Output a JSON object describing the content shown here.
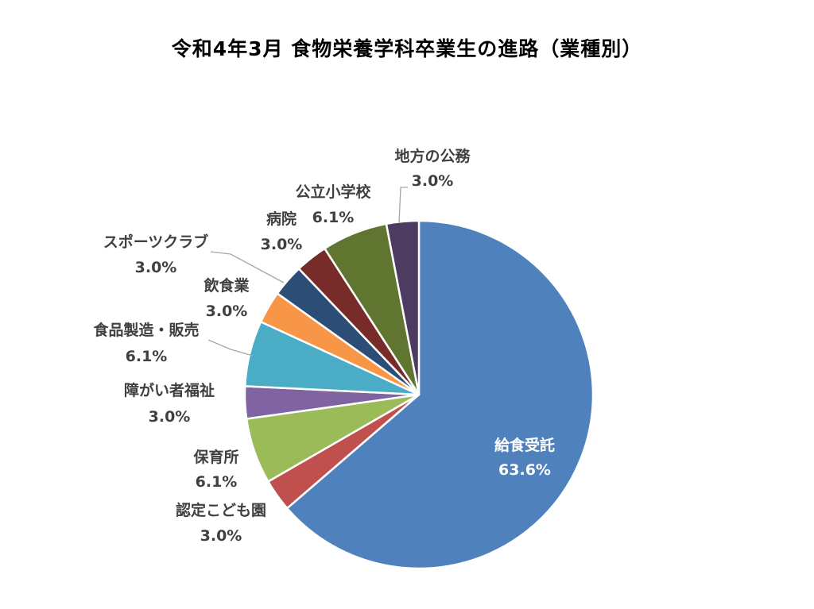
{
  "chart_data": {
    "type": "pie",
    "title": "令和4年3月 食物栄養学科卒業生の進路（業種別）",
    "slices": [
      {
        "name": "給食受託",
        "value": 63.6,
        "label": "63.6%",
        "color": "#4F81BD"
      },
      {
        "name": "認定こども園",
        "value": 3.0,
        "label": "3.0%",
        "color": "#C0504D"
      },
      {
        "name": "保育所",
        "value": 6.1,
        "label": "6.1%",
        "color": "#9BBB59"
      },
      {
        "name": "障がい者福祉",
        "value": 3.0,
        "label": "3.0%",
        "color": "#8064A2"
      },
      {
        "name": "食品製造・販売",
        "value": 6.1,
        "label": "6.1%",
        "color": "#4BACC6"
      },
      {
        "name": "飲食業",
        "value": 3.0,
        "label": "3.0%",
        "color": "#F79646"
      },
      {
        "name": "スポーツクラブ",
        "value": 3.0,
        "label": "3.0%",
        "color": "#2C4D75"
      },
      {
        "name": "病院",
        "value": 3.0,
        "label": "3.0%",
        "color": "#772C2A"
      },
      {
        "name": "公立小学校",
        "value": 6.1,
        "label": "6.1%",
        "color": "#5F7530"
      },
      {
        "name": "地方の公務",
        "value": 3.0,
        "label": "3.0%",
        "color": "#4D3B62"
      }
    ]
  }
}
